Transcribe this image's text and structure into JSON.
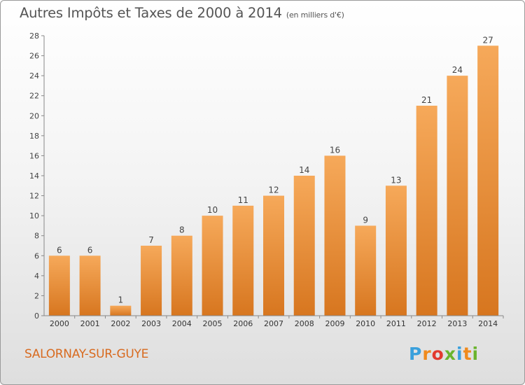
{
  "title": "Autres Impôts et Taxes de 2000 à 2014",
  "title_unit": "(en milliers d'€)",
  "city": "SALORNAY-SUR-GUYE",
  "logo_letters": [
    {
      "ch": "P",
      "color": "#3aa0dc"
    },
    {
      "ch": "r",
      "color": "#f08a1c"
    },
    {
      "ch": "o",
      "color": "#e23a2e"
    },
    {
      "ch": "x",
      "color": "#6ab42d"
    },
    {
      "ch": "i",
      "color": "#3aa0dc"
    },
    {
      "ch": "t",
      "color": "#f08a1c"
    },
    {
      "ch": "i",
      "color": "#6ab42d"
    }
  ],
  "colors": {
    "bar_light": "#f6a95a",
    "bar_dark": "#d7761f",
    "axis": "#888888",
    "grid": "#d0d0d0"
  },
  "chart_data": {
    "type": "bar",
    "categories": [
      "2000",
      "2001",
      "2002",
      "2003",
      "2004",
      "2005",
      "2006",
      "2007",
      "2008",
      "2009",
      "2010",
      "2011",
      "2012",
      "2013",
      "2014"
    ],
    "values": [
      6,
      6,
      1,
      7,
      8,
      10,
      11,
      12,
      14,
      16,
      9,
      13,
      21,
      24,
      27
    ],
    "ylim": [
      0,
      28
    ],
    "yticks": [
      0,
      2,
      4,
      6,
      8,
      10,
      12,
      14,
      16,
      18,
      20,
      22,
      24,
      26,
      28
    ],
    "data_labels": true,
    "legend": "none"
  }
}
